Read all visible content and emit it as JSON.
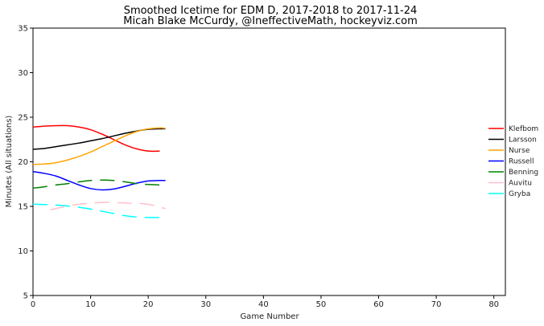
{
  "chart_data": {
    "type": "line",
    "title": "Smoothed Icetime for EDM D, 2017-2018 to 2017-11-24",
    "subtitle": "Micah Blake McCurdy, @IneffectiveMath, hockeyviz.com",
    "xlabel": "Game Number",
    "ylabel": "Minutes (All situations)",
    "xlim": [
      0,
      82
    ],
    "ylim": [
      5,
      35
    ],
    "xticks": [
      0,
      10,
      20,
      30,
      40,
      50,
      60,
      70,
      80
    ],
    "yticks": [
      5,
      10,
      15,
      20,
      25,
      30,
      35
    ],
    "grid": false,
    "legend_position": "right",
    "series": [
      {
        "name": "Klefbom",
        "color": "#ff0000",
        "dashed": false,
        "x": [
          0,
          2,
          4,
          6,
          8,
          10,
          12,
          14,
          16,
          18,
          20,
          22
        ],
        "y": [
          23.9,
          24.0,
          24.05,
          24.05,
          23.9,
          23.6,
          23.1,
          22.5,
          21.9,
          21.45,
          21.2,
          21.2
        ]
      },
      {
        "name": "Larsson",
        "color": "#000000",
        "dashed": false,
        "x": [
          0,
          2,
          4,
          6,
          8,
          10,
          12,
          14,
          16,
          18,
          20,
          22,
          23
        ],
        "y": [
          21.4,
          21.5,
          21.7,
          21.9,
          22.1,
          22.35,
          22.6,
          22.9,
          23.2,
          23.45,
          23.65,
          23.7,
          23.7
        ]
      },
      {
        "name": "Nurse",
        "color": "#ffa500",
        "dashed": false,
        "x": [
          0,
          2,
          4,
          6,
          8,
          10,
          12,
          14,
          16,
          18,
          20,
          22,
          23
        ],
        "y": [
          19.7,
          19.75,
          19.9,
          20.2,
          20.6,
          21.1,
          21.7,
          22.3,
          22.9,
          23.4,
          23.7,
          23.8,
          23.75
        ]
      },
      {
        "name": "Russell",
        "color": "#0000ff",
        "dashed": false,
        "x": [
          0,
          2,
          4,
          6,
          8,
          10,
          12,
          14,
          16,
          18,
          20,
          22,
          23
        ],
        "y": [
          18.9,
          18.7,
          18.4,
          17.9,
          17.4,
          17.0,
          16.85,
          16.95,
          17.25,
          17.6,
          17.85,
          17.9,
          17.9
        ]
      },
      {
        "name": "Benning",
        "color": "#008000",
        "dashed": true,
        "x": [
          0,
          2,
          4,
          6,
          8,
          10,
          12,
          14,
          16,
          18,
          20,
          22,
          23
        ],
        "y": [
          17.05,
          17.2,
          17.4,
          17.55,
          17.75,
          17.9,
          17.95,
          17.9,
          17.75,
          17.55,
          17.45,
          17.4,
          17.4
        ]
      },
      {
        "name": "Auvitu",
        "color": "#ffc0cb",
        "dashed": true,
        "x": [
          3,
          5,
          7,
          9,
          11,
          13,
          15,
          17,
          19,
          21,
          23
        ],
        "y": [
          14.6,
          14.9,
          15.15,
          15.3,
          15.4,
          15.45,
          15.4,
          15.35,
          15.3,
          15.1,
          14.75
        ]
      },
      {
        "name": "Gryba",
        "color": "#00ffff",
        "dashed": true,
        "x": [
          0,
          2,
          4,
          6,
          8,
          10,
          12,
          14,
          16,
          18,
          20,
          22,
          23
        ],
        "y": [
          15.25,
          15.2,
          15.15,
          15.05,
          14.9,
          14.7,
          14.45,
          14.2,
          13.95,
          13.8,
          13.75,
          13.75,
          13.8
        ]
      }
    ]
  }
}
